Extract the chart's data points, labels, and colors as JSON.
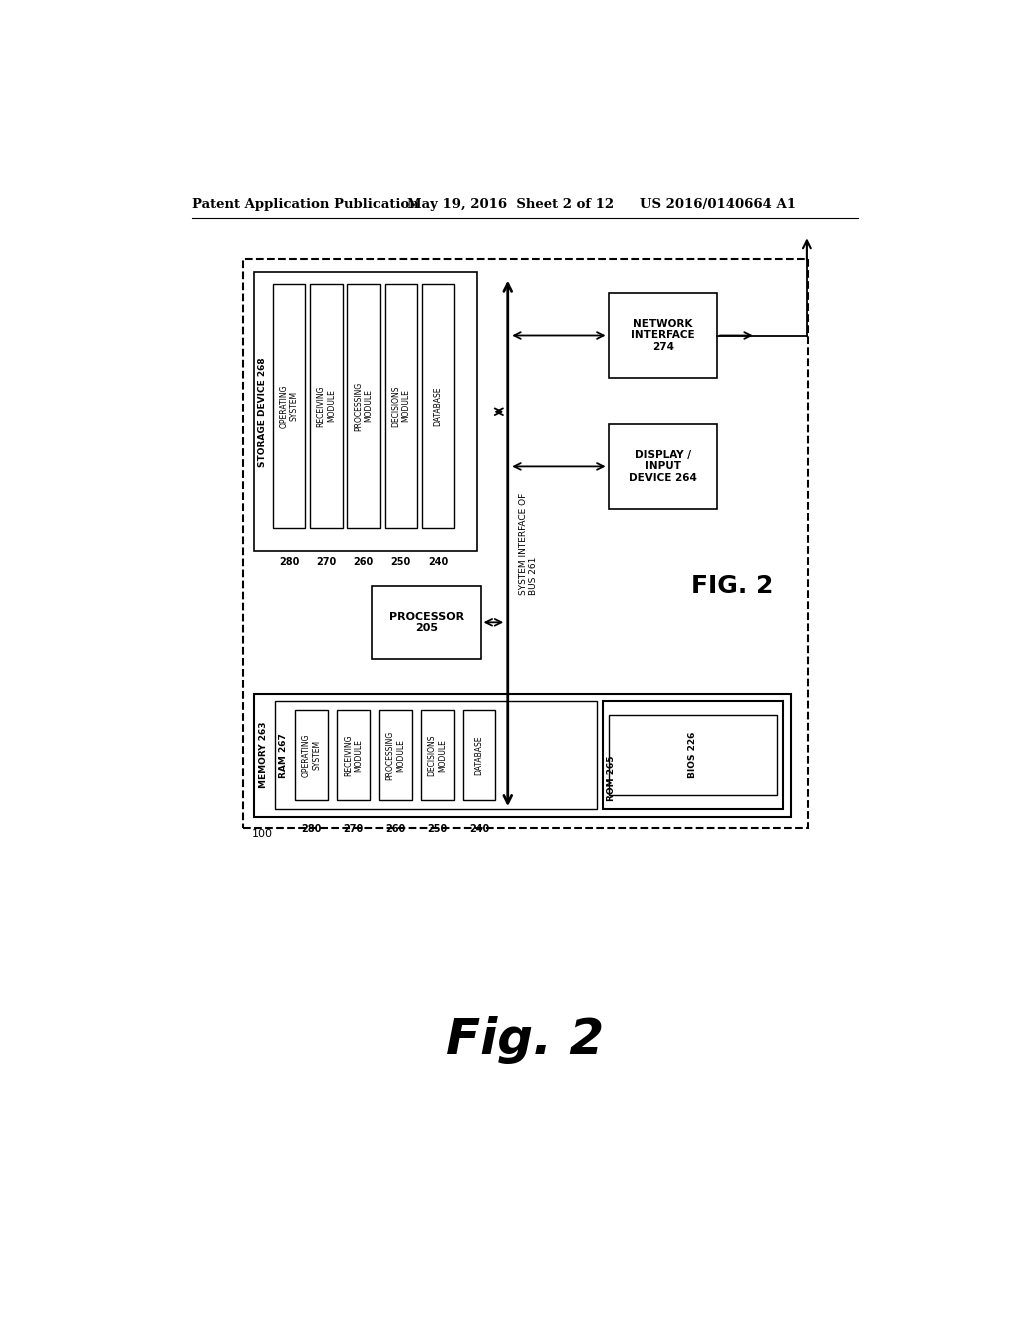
{
  "bg_color": "#ffffff",
  "header_left": "Patent Application Publication",
  "header_mid": "May 19, 2016  Sheet 2 of 12",
  "header_right": "US 2016/0140664 A1",
  "fig_label_inner": "FIG. 2",
  "fig2_caption": "Fig. 2",
  "ref_100": "100",
  "storage_box_label": "STORAGE DEVICE 268",
  "storage_modules": [
    "OPERATING\nSYSTEM",
    "RECEIVING\nMODULE",
    "PROCESSING\nMODULE",
    "DECISIONS\nMODULE",
    "DATABASE"
  ],
  "storage_module_labels": [
    "280",
    "270",
    "260",
    "250",
    "240"
  ],
  "memory_box_label": "MEMORY 263",
  "ram_label": "RAM 267",
  "memory_modules": [
    "OPERATING\nSYSTEM",
    "RECEIVING\nMODULE",
    "PROCESSING\nMODULE",
    "DECISIONS\nMODULE",
    "DATABASE"
  ],
  "memory_module_labels": [
    "280",
    "270",
    "260",
    "250",
    "240"
  ],
  "rom_label": "ROM 265",
  "bios_label": "BIOS 226",
  "processor_label": "PROCESSOR\n205",
  "network_label": "NETWORK\nINTERFACE\n274",
  "display_label": "DISPLAY /\nINPUT\nDEVICE 264",
  "bus_label": "SYSTEM INTERFACE OF\nBUS 261"
}
